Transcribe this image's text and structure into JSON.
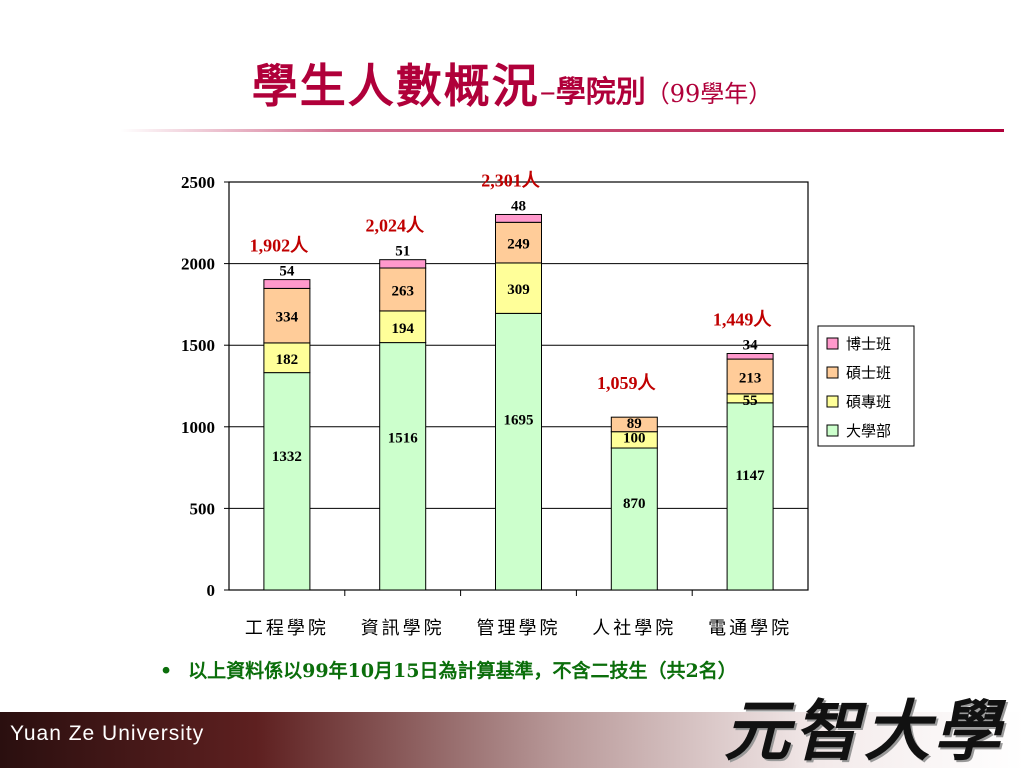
{
  "slide": {
    "title_main": "學生人數概況",
    "title_dash": "–",
    "title_sub": "學院別",
    "title_paren": "（99學年）",
    "footnote_bullet": "•",
    "footnote": "以上資料係以99年10月15日為計算基準，不含二技生（共2名）",
    "footer_name": "Yuan Ze University",
    "footer_logo": "元智大學"
  },
  "colors": {
    "title": "#b0003a",
    "total_label": "#c00000",
    "footnote": "#0b6e0b",
    "series": {
      "大學部": "#ccffcc",
      "碩專班": "#ffff99",
      "碩士班": "#ffcc99",
      "博士班": "#ff99cc"
    }
  },
  "chart_data": {
    "type": "bar",
    "stacked": true,
    "title": "",
    "xlabel": "",
    "ylabel": "",
    "categories": [
      "工程學院",
      "資訊學院",
      "管理學院",
      "人社學院",
      "電通學院"
    ],
    "series": [
      {
        "name": "大學部",
        "values": [
          1332,
          1516,
          1695,
          870,
          1147
        ]
      },
      {
        "name": "碩專班",
        "values": [
          182,
          194,
          309,
          100,
          55
        ]
      },
      {
        "name": "碩士班",
        "values": [
          334,
          263,
          249,
          89,
          213
        ]
      },
      {
        "name": "博士班",
        "values": [
          54,
          51,
          48,
          0,
          34
        ]
      }
    ],
    "totals": [
      "1,902人",
      "2,024人",
      "2,301人",
      "1,059人",
      "1,449人"
    ],
    "ylim": [
      0,
      2500
    ],
    "yticks": [
      0,
      500,
      1000,
      1500,
      2000,
      2500
    ],
    "grid": true,
    "legend": "right"
  }
}
